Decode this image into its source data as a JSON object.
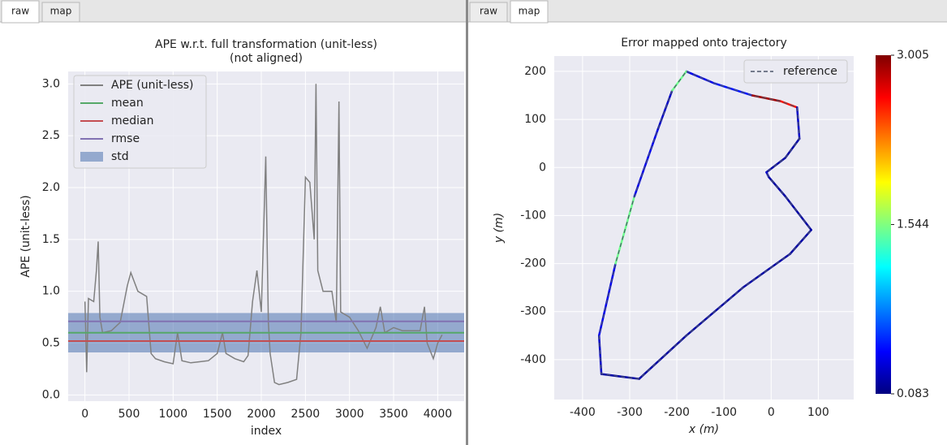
{
  "left_panel": {
    "tabs": [
      "raw",
      "map"
    ],
    "active": 0
  },
  "right_panel": {
    "tabs": [
      "raw",
      "map"
    ],
    "active": 1
  },
  "chart_data": [
    {
      "type": "line",
      "title": "APE w.r.t. full transformation (unit-less)",
      "subtitle": "(not aligned)",
      "x_label": "index",
      "y_label": "APE (unit-less)",
      "xlim": [
        -190,
        4300
      ],
      "ylim": [
        -0.06,
        3.12
      ],
      "xticks": [
        0,
        500,
        1000,
        1500,
        2000,
        2500,
        3000,
        3500,
        4000
      ],
      "yticks": [
        {
          "value": 0,
          "label": "0.0"
        },
        0.5,
        {
          "value": 1,
          "label": "1.0"
        },
        1.5,
        {
          "value": 2,
          "label": "2.0"
        },
        2.5,
        {
          "value": 3,
          "label": "3.0"
        }
      ],
      "grid": true,
      "legend": "upper left",
      "series": [
        {
          "name": "APE (unit-less)",
          "color": "#808080",
          "x": [
            0,
            20,
            40,
            100,
            130,
            150,
            170,
            200,
            300,
            400,
            480,
            520,
            600,
            700,
            750,
            800,
            900,
            1000,
            1050,
            1100,
            1200,
            1300,
            1400,
            1500,
            1560,
            1600,
            1700,
            1800,
            1850,
            1900,
            1950,
            2000,
            2050,
            2080,
            2100,
            2150,
            2200,
            2300,
            2400,
            2450,
            2500,
            2550,
            2600,
            2620,
            2640,
            2700,
            2800,
            2850,
            2880,
            2900,
            3000,
            3100,
            3200,
            3300,
            3350,
            3400,
            3500,
            3600,
            3700,
            3800,
            3850,
            3880,
            3950,
            4000,
            4050
          ],
          "values": [
            0.9,
            0.22,
            0.93,
            0.9,
            1.2,
            1.48,
            0.75,
            0.6,
            0.62,
            0.7,
            1.05,
            1.18,
            1.0,
            0.95,
            0.4,
            0.35,
            0.32,
            0.3,
            0.6,
            0.33,
            0.31,
            0.32,
            0.33,
            0.4,
            0.6,
            0.4,
            0.35,
            0.32,
            0.38,
            0.9,
            1.2,
            0.8,
            2.3,
            0.7,
            0.4,
            0.12,
            0.1,
            0.12,
            0.15,
            0.6,
            2.1,
            2.05,
            1.5,
            3.0,
            1.2,
            1.0,
            1.0,
            0.7,
            2.83,
            0.8,
            0.75,
            0.62,
            0.45,
            0.65,
            0.85,
            0.6,
            0.65,
            0.62,
            0.62,
            0.62,
            0.85,
            0.5,
            0.35,
            0.5,
            0.58
          ]
        }
      ],
      "stats": [
        {
          "name": "mean",
          "color": "#55a868",
          "value": 0.6
        },
        {
          "name": "median",
          "color": "#c44e52",
          "value": 0.52
        },
        {
          "name": "rmse",
          "color": "#8172b2",
          "value": 0.71
        }
      ],
      "std": {
        "name": "std",
        "color": "#4c72b0",
        "value": 0.19
      }
    },
    {
      "type": "trajectory",
      "title": "Error mapped onto trajectory",
      "x_label": "x (m)",
      "y_label": "y (m)",
      "xlim": [
        -460,
        175
      ],
      "ylim": [
        -483,
        232
      ],
      "xticks": [
        -400,
        -300,
        -200,
        -100,
        0,
        100
      ],
      "yticks": [
        -400,
        -300,
        -200,
        -100,
        0,
        100,
        200
      ],
      "grid": true,
      "legend": "upper right",
      "colormap": "jet",
      "cbar_lim": [
        0.083,
        3.005
      ],
      "cbar_ticks": [
        0.083,
        1.544,
        3.005
      ],
      "series": [
        {
          "name": "reference",
          "color": "#4c566a",
          "x": [
            -180,
            -120,
            -40,
            20,
            55,
            60,
            30,
            -10,
            -5,
            30,
            85,
            40,
            -60,
            -180,
            -280,
            -360,
            -365,
            -330,
            -290,
            -240,
            -210,
            -180
          ],
          "y": [
            200,
            175,
            150,
            138,
            125,
            60,
            20,
            -10,
            -20,
            -60,
            -130,
            -180,
            -250,
            -350,
            -440,
            -430,
            -350,
            -200,
            -60,
            80,
            160,
            200
          ],
          "error": [
            0.4,
            0.5,
            2.9,
            2.6,
            0.3,
            0.2,
            0.2,
            0.3,
            0.2,
            0.2,
            0.2,
            0.2,
            0.2,
            0.2,
            0.2,
            0.3,
            0.4,
            1.5,
            0.4,
            0.3,
            1.5,
            0.4
          ]
        }
      ]
    }
  ]
}
